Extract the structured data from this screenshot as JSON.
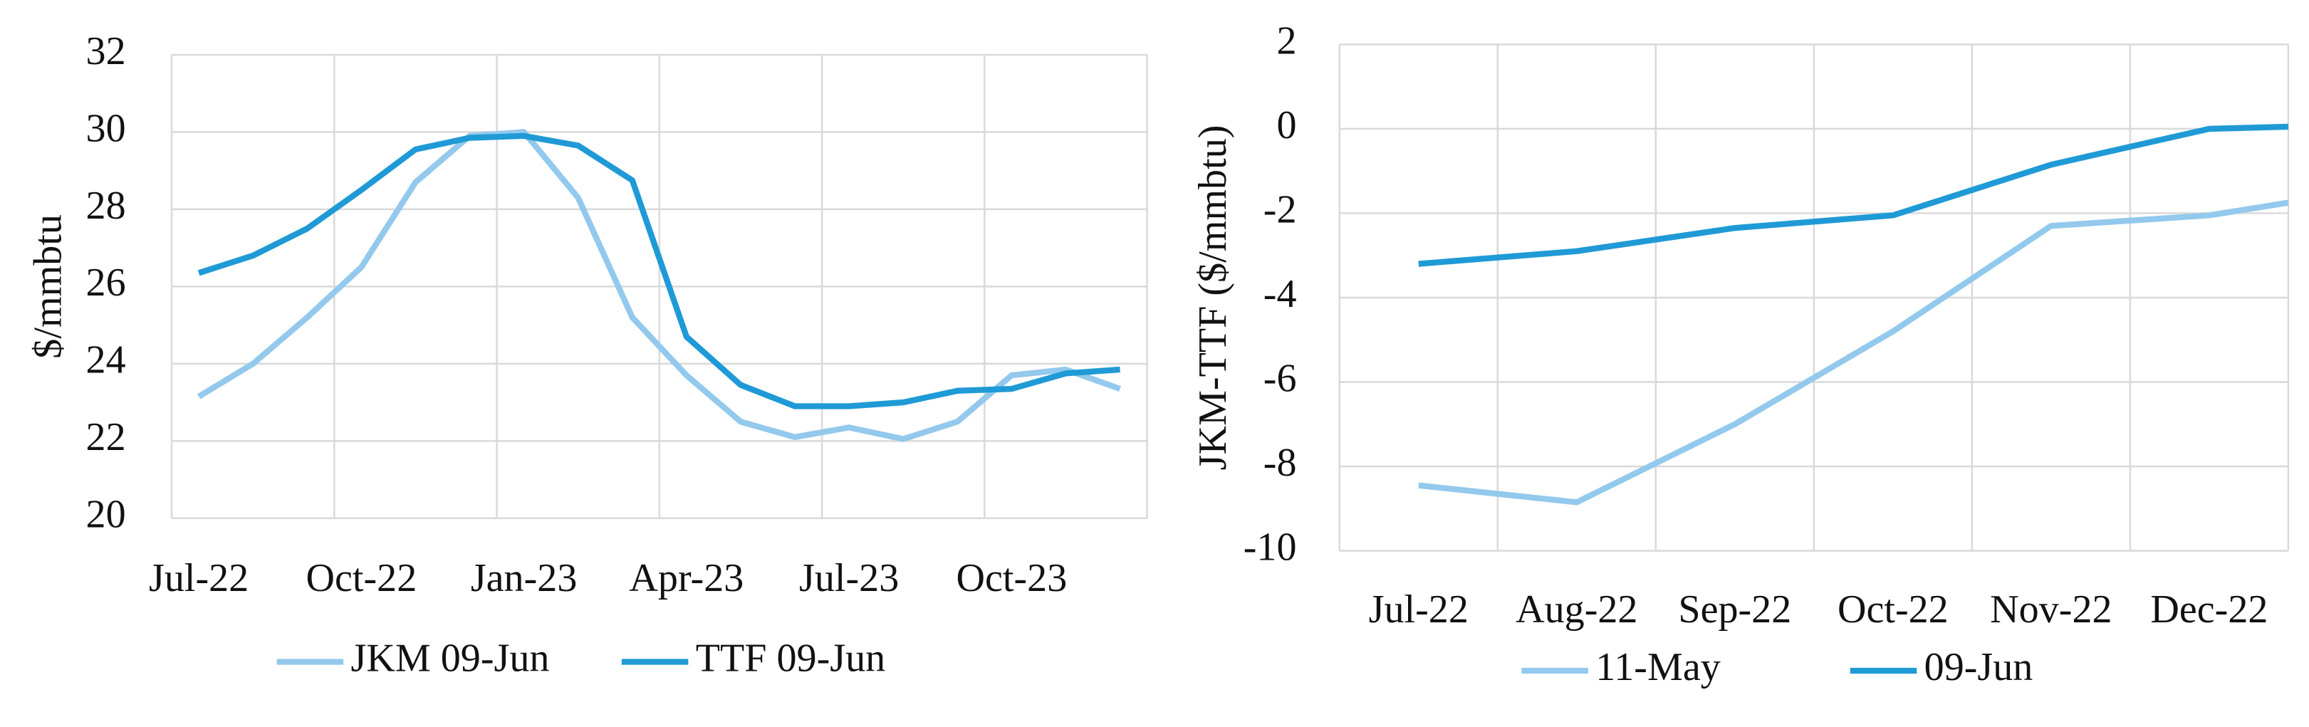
{
  "chart_data": [
    {
      "type": "line",
      "ylabel": "$/mmbtu",
      "categories": [
        "Jul-22",
        null,
        null,
        "Oct-22",
        null,
        null,
        "Jan-23",
        null,
        null,
        "Apr-23",
        null,
        null,
        "Jul-23",
        null,
        null,
        "Oct-23",
        null,
        null
      ],
      "ylim": [
        20,
        32
      ],
      "yticks": [
        20,
        22,
        24,
        26,
        28,
        30,
        32
      ],
      "grid": true,
      "legend": "bottom",
      "series": [
        {
          "name": "JKM 09-Jun",
          "color": "#93c9ec",
          "values": [
            23.15,
            24.0,
            25.2,
            26.5,
            28.7,
            29.9,
            30.0,
            28.3,
            25.2,
            23.7,
            22.5,
            22.1,
            22.35,
            22.05,
            22.5,
            23.7,
            23.85,
            23.35
          ]
        },
        {
          "name": "TTF 09-Jun",
          "color": "#1f9ad6",
          "values": [
            26.35,
            26.8,
            27.5,
            28.5,
            29.55,
            29.85,
            29.9,
            29.65,
            28.75,
            24.7,
            23.45,
            22.9,
            22.9,
            23.0,
            23.3,
            23.35,
            23.75,
            23.85
          ]
        }
      ]
    },
    {
      "type": "line",
      "ylabel": "JKM-TTF ($/mmbtu)",
      "categories": [
        "Jul-22",
        "Aug-22",
        "Sep-22",
        "Oct-22",
        "Nov-22",
        "Dec-22",
        null
      ],
      "ylim": [
        -10,
        2
      ],
      "yticks": [
        -10,
        -8,
        -6,
        -4,
        -2,
        0,
        2
      ],
      "grid": true,
      "legend": "bottom",
      "series": [
        {
          "name": "11-May",
          "color": "#93c9ec",
          "values": [
            -8.45,
            -8.85,
            -7.0,
            -4.8,
            -2.3,
            -2.05,
            -1.45
          ]
        },
        {
          "name": "09-Jun",
          "color": "#1f9ad6",
          "values": [
            -3.2,
            -2.9,
            -2.35,
            -2.05,
            -0.85,
            0,
            0.1
          ]
        }
      ]
    }
  ]
}
